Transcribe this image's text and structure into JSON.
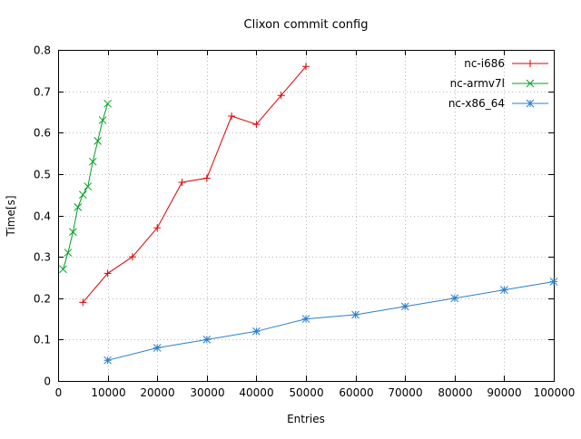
{
  "chart_data": {
    "type": "line",
    "title": "Clixon commit config",
    "xlabel": "Entries",
    "ylabel": "Time[s]",
    "xlim": [
      0,
      100000
    ],
    "ylim": [
      0,
      0.8
    ],
    "xticks": [
      0,
      10000,
      20000,
      30000,
      40000,
      50000,
      60000,
      70000,
      80000,
      90000,
      100000
    ],
    "yticks": [
      0,
      0.1,
      0.2,
      0.3,
      0.4,
      0.5,
      0.6,
      0.7,
      0.8
    ],
    "grid": true,
    "legend_position": "top-right-inside",
    "series": [
      {
        "name": "nc-i686",
        "color": "#e00000",
        "marker": "plus",
        "x": [
          5000,
          10000,
          15000,
          20000,
          25000,
          30000,
          35000,
          40000,
          45000,
          50000
        ],
        "y": [
          0.19,
          0.26,
          0.3,
          0.37,
          0.48,
          0.49,
          0.64,
          0.62,
          0.69,
          0.76
        ]
      },
      {
        "name": "nc-armv7l",
        "color": "#00a020",
        "marker": "cross",
        "x": [
          1000,
          2000,
          3000,
          4000,
          5000,
          6000,
          7000,
          8000,
          9000,
          10000
        ],
        "y": [
          0.27,
          0.31,
          0.36,
          0.42,
          0.45,
          0.47,
          0.53,
          0.58,
          0.63,
          0.67
        ]
      },
      {
        "name": "nc-x86_64",
        "color": "#2a7fce",
        "marker": "asterisk",
        "x": [
          10000,
          20000,
          30000,
          40000,
          50000,
          60000,
          70000,
          80000,
          90000,
          100000
        ],
        "y": [
          0.05,
          0.08,
          0.1,
          0.12,
          0.15,
          0.16,
          0.18,
          0.2,
          0.22,
          0.24
        ]
      }
    ]
  }
}
